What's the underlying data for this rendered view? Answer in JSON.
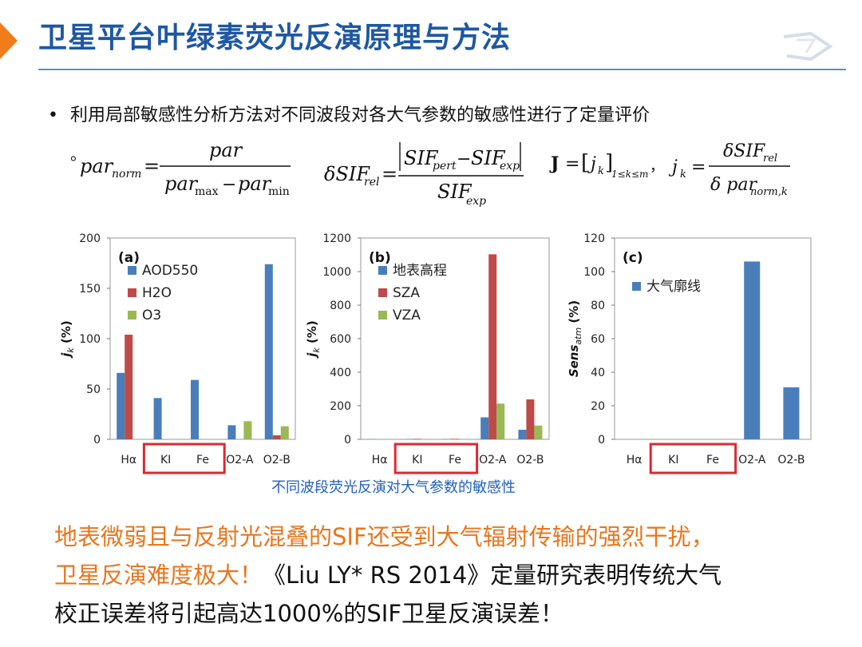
{
  "slide": {
    "title": "卫星平台叶绿素荧光反演原理与方法",
    "bullet_text": "利用局部敏感性分析方法对不同波段对各大气参数的敏感性进行了定量评价",
    "bullet_suffix": "。"
  },
  "formulas": {
    "par_norm": {
      "lhs": "par",
      "lhs_sub": "norm",
      "num": "par",
      "den_a": "par",
      "den_a_sub": "max",
      "den_minus": "−",
      "den_b": "par",
      "den_b_sub": "min"
    },
    "dsif": {
      "lhs": "δSIF",
      "lhs_sub": "rel",
      "num_a": "SIF",
      "num_a_sub": "pert",
      "num_minus": "−",
      "num_b": "SIF",
      "num_b_sub": "exp",
      "den": "SIF",
      "den_sub": "exp"
    },
    "jacobian": {
      "bold": "J",
      "eq": "=",
      "elem": "j",
      "elem_sub": "k",
      "range": "1≤k≤m",
      "comma": "，",
      "jk": "j",
      "jk_sub": "k",
      "num": "δSIF",
      "num_sub": "rel",
      "den": "δ par",
      "den_sub": "norm,k"
    }
  },
  "colors": {
    "blue": "#4a7ebb",
    "red": "#be4b48",
    "green": "#98b954",
    "highlight": "#e0272f",
    "title": "#1e57a4",
    "orange": "#e8761e"
  },
  "chart_data": [
    {
      "type": "bar",
      "panel_label": "(a)",
      "categories": [
        "Hα",
        "KI",
        "Fe",
        "O2-A",
        "O2-B"
      ],
      "ylabel": "j",
      "ylabel_sub": "k",
      "ylabel_unit": "(%)",
      "ylim": [
        0,
        200
      ],
      "yticks": [
        "0",
        "50",
        "100",
        "150",
        "200"
      ],
      "series": [
        {
          "name": "AOD550",
          "values": [
            66,
            41,
            59,
            14,
            174
          ]
        },
        {
          "name": "H2O",
          "values": [
            104,
            0,
            0,
            0,
            4
          ]
        },
        {
          "name": "O3",
          "values": [
            0,
            0,
            0,
            18,
            13
          ]
        }
      ],
      "highlight": [
        "KI",
        "Fe"
      ]
    },
    {
      "type": "bar",
      "panel_label": "(b)",
      "categories": [
        "Hα",
        "KI",
        "Fe",
        "O2-A",
        "O2-B"
      ],
      "ylabel": "j",
      "ylabel_sub": "k",
      "ylabel_unit": "(%)",
      "ylim": [
        0,
        1200
      ],
      "yticks": [
        "0",
        "200",
        "400",
        "600",
        "800",
        "1000",
        "1200"
      ],
      "series": [
        {
          "name": "地表高程",
          "values": [
            2,
            2,
            2,
            131,
            57
          ]
        },
        {
          "name": "SZA",
          "values": [
            0,
            3,
            3,
            1103,
            238
          ]
        },
        {
          "name": "VZA",
          "values": [
            0,
            0,
            0,
            213,
            82
          ]
        }
      ],
      "highlight": [
        "KI",
        "Fe"
      ]
    },
    {
      "type": "bar",
      "panel_label": "(c)",
      "categories": [
        "Hα",
        "KI",
        "Fe",
        "O2-A",
        "O2-B"
      ],
      "ylabel": "Sens",
      "ylabel_sub": "atm",
      "ylabel_unit": "(%)",
      "ylim": [
        0,
        120
      ],
      "yticks": [
        "0",
        "20",
        "40",
        "60",
        "80",
        "100",
        "120"
      ],
      "series": [
        {
          "name": "大气廓线",
          "values": [
            0,
            0,
            0,
            106,
            31
          ]
        }
      ],
      "highlight": [
        "KI",
        "Fe"
      ]
    }
  ],
  "caption": "不同波段荧光反演对大气参数的敏感性",
  "conclusion": {
    "orange_1": "地表微弱且与反射光混叠的SIF还受到大气辐射传输的强烈干扰，",
    "orange_2": "卫星反演难度极大！",
    "black_2": "《Liu LY* RS 2014》定量研究表明传统大气",
    "black_3": "校正误差将引起高达1000%的SIF卫星反演误差！"
  }
}
